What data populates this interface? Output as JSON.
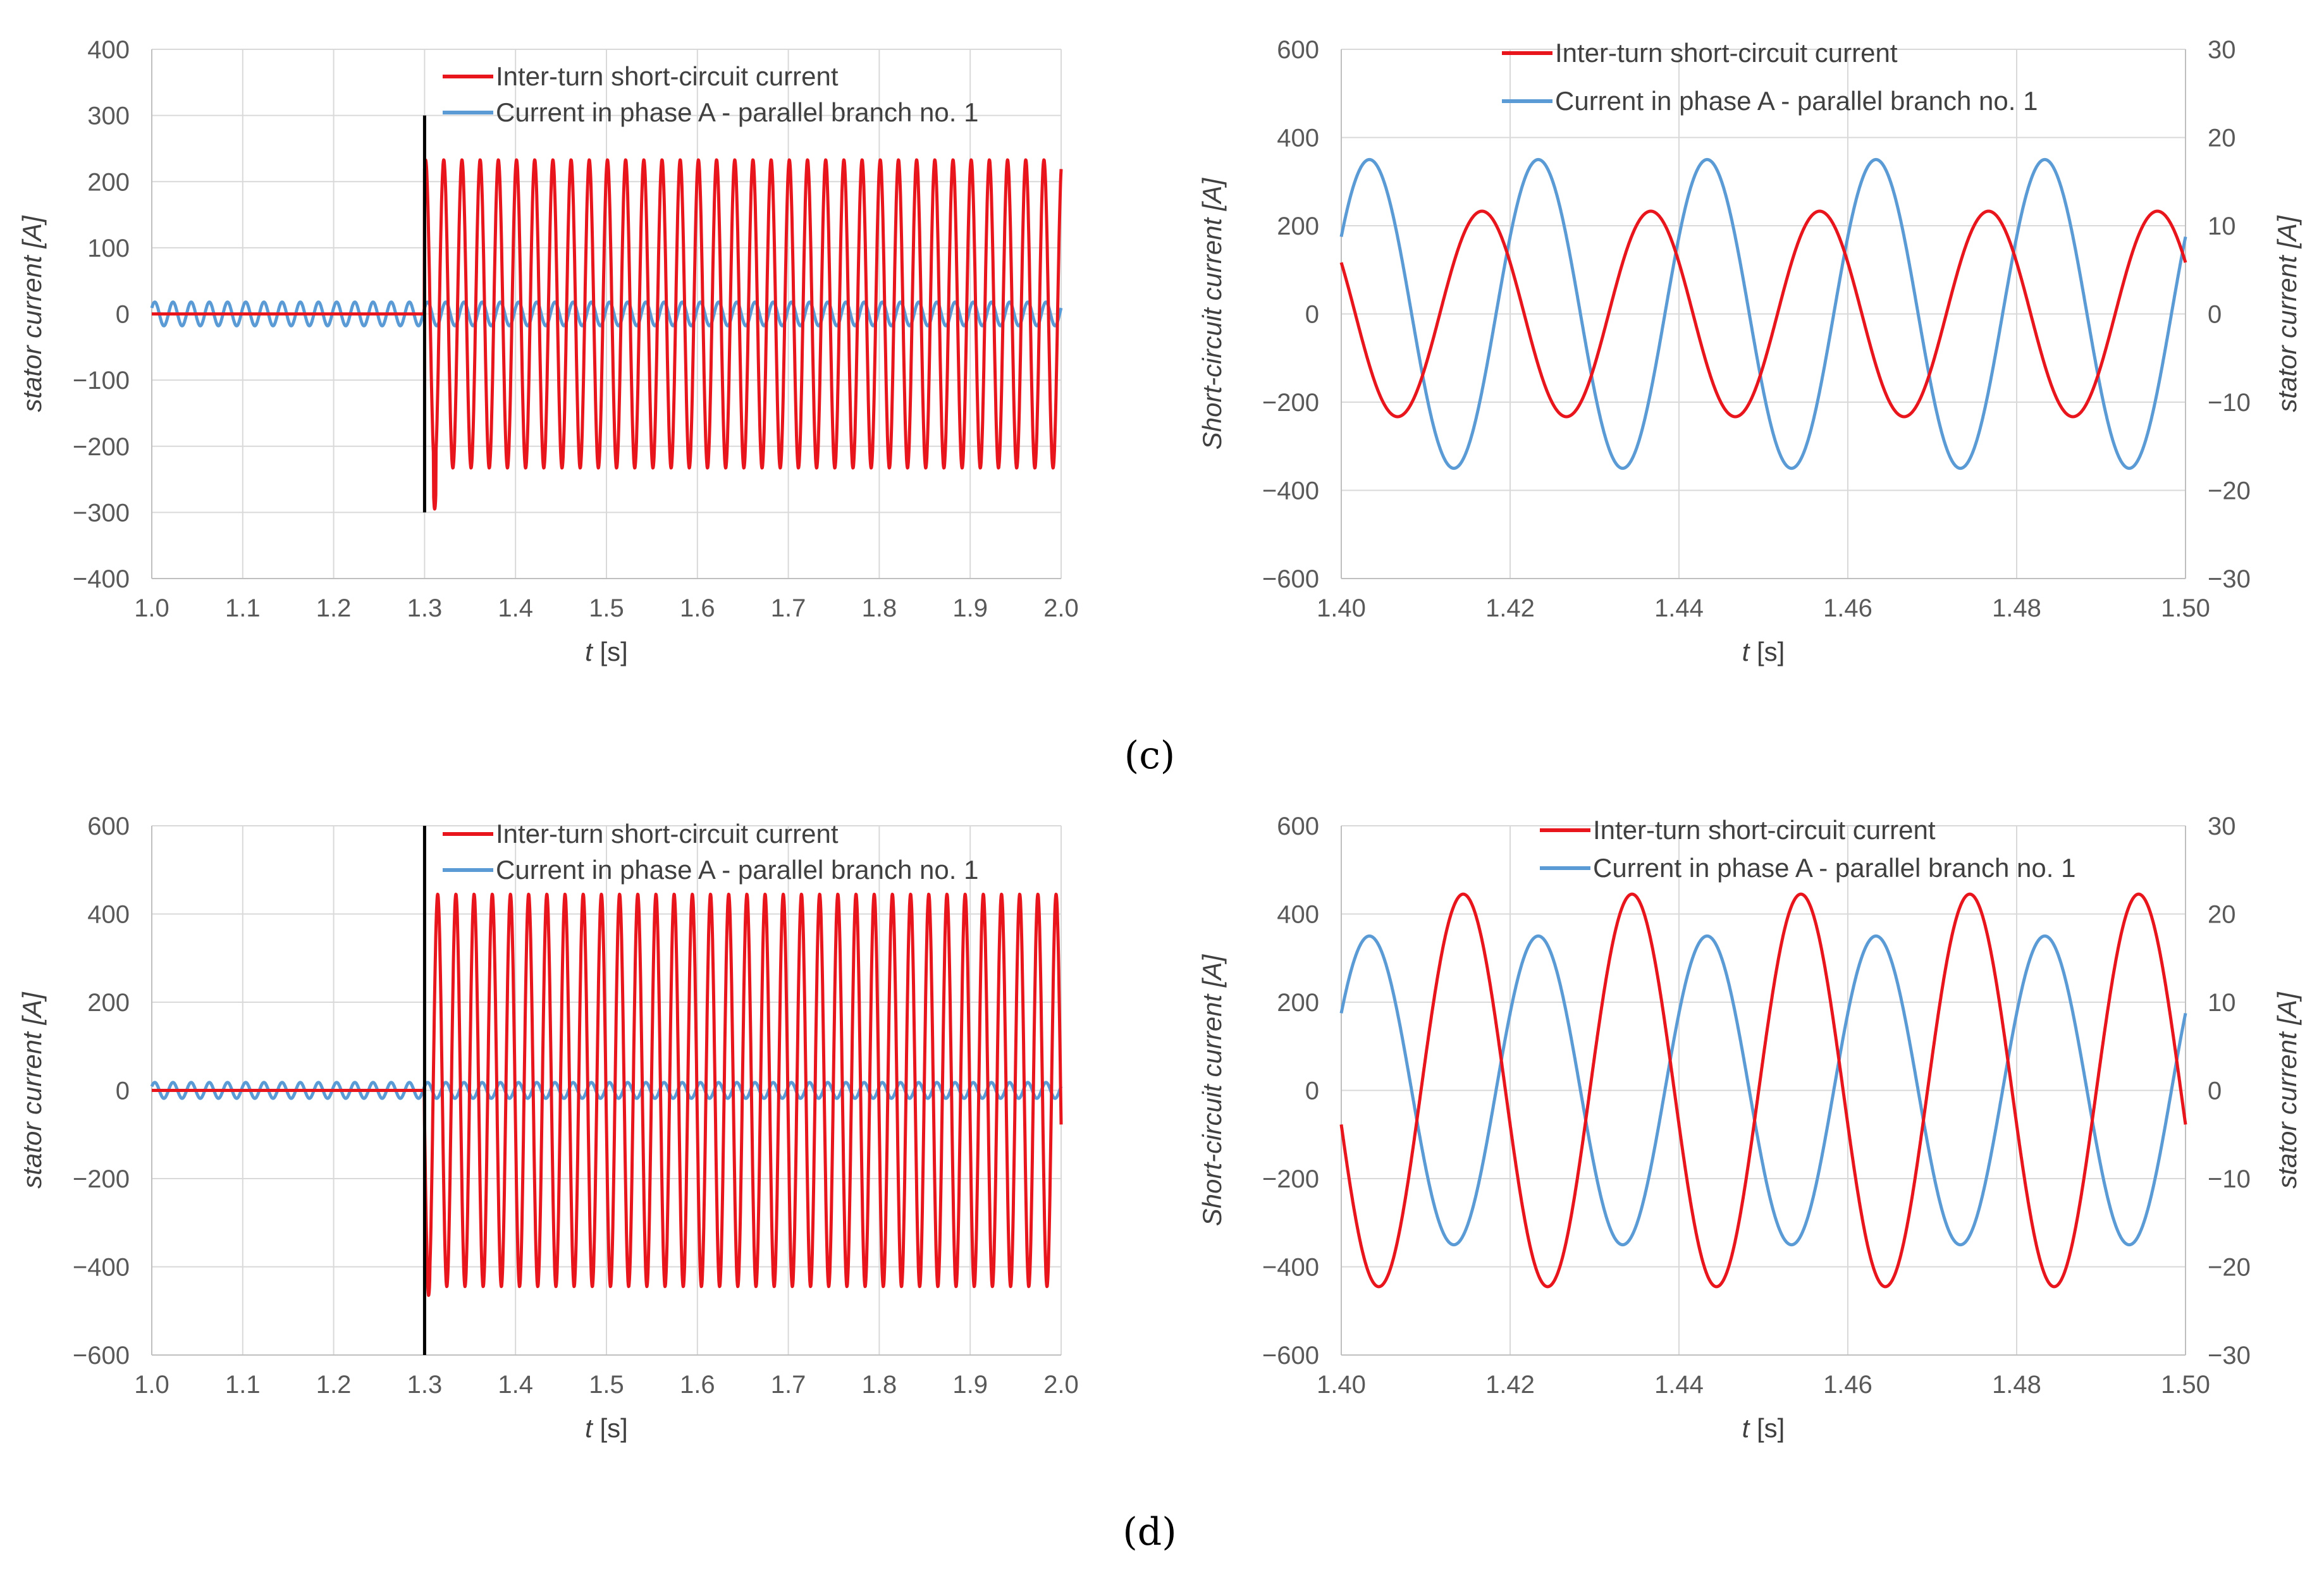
{
  "panel_labels": [
    "(c)",
    "(d)"
  ],
  "colors": {
    "short_circuit": "#e8161c",
    "phase_a": "#5b9bd5",
    "fault_line": "#000000",
    "grid": "#d9d9d9",
    "axis": "#bfbfbf"
  },
  "chart_data": [
    {
      "type": "line",
      "panel": "(c)",
      "position": "left",
      "x_tick_labels": [
        "1.0",
        "1.1",
        "1.2",
        "1.3",
        "1.4",
        "1.5",
        "1.6",
        "1.7",
        "1.8",
        "1.9",
        "2.0"
      ],
      "y_tick_labels": [
        "400",
        "300",
        "200",
        "100",
        "0",
        "−100",
        "−200",
        "−300",
        "−400"
      ],
      "xlim": [
        1.0,
        2.0
      ],
      "ylim": [
        -400,
        400
      ],
      "ylabel": "stator current [A]",
      "xlabel_var": "t",
      "xlabel_unit": " [s]",
      "grid": true,
      "fault_time": 1.3,
      "fault_line_range": [
        -300,
        300
      ],
      "legend": [
        "Inter-turn short-circuit current",
        "Current in phase A - parallel branch no. 1"
      ],
      "legend_placement": "top-center",
      "series": [
        {
          "name": "Inter-turn short-circuit current",
          "start": 1.3,
          "amplitude": 233,
          "frequency_hz": 50,
          "phase_deg": 70,
          "value_before_start": 0,
          "initial_min": -295
        },
        {
          "name": "Current in phase A - parallel branch no. 1",
          "start": 1.0,
          "amplitude": 18,
          "frequency_hz": 50,
          "phase_deg": 30
        }
      ]
    },
    {
      "type": "line",
      "panel": "(c)",
      "position": "right",
      "x_tick_labels": [
        "1.40",
        "1.42",
        "1.44",
        "1.46",
        "1.48",
        "1.50"
      ],
      "y_tick_labels": [
        "600",
        "400",
        "200",
        "0",
        "−200",
        "−400",
        "−600"
      ],
      "y2_tick_labels": [
        "30",
        "20",
        "10",
        "0",
        "−10",
        "−20",
        "−30"
      ],
      "xlim": [
        1.4,
        1.5
      ],
      "ylim": [
        -600,
        600
      ],
      "y2lim": [
        -30,
        30
      ],
      "ylabel": "Short-circuit current [A]",
      "y2label": "stator current [A]",
      "xlabel_var": "t",
      "xlabel_unit": " [s]",
      "grid": true,
      "legend": [
        "Inter-turn short-circuit current",
        "Current in phase A - parallel branch no. 1"
      ],
      "legend_placement": "top-center",
      "series": [
        {
          "name": "Inter-turn short-circuit current",
          "axis": "left",
          "amplitude": 233,
          "frequency_hz": 50,
          "phase_deg": 150
        },
        {
          "name": "Current in phase A - parallel branch no. 1",
          "axis": "right",
          "amplitude": 17.5,
          "frequency_hz": 50,
          "phase_deg": 30
        }
      ]
    },
    {
      "type": "line",
      "panel": "(d)",
      "position": "left",
      "x_tick_labels": [
        "1.0",
        "1.1",
        "1.2",
        "1.3",
        "1.4",
        "1.5",
        "1.6",
        "1.7",
        "1.8",
        "1.9",
        "2.0"
      ],
      "y_tick_labels": [
        "600",
        "400",
        "200",
        "0",
        "−200",
        "−400",
        "−600"
      ],
      "xlim": [
        1.0,
        2.0
      ],
      "ylim": [
        -600,
        600
      ],
      "ylabel": "stator current [A]",
      "xlabel_var": "t",
      "xlabel_unit": " [s]",
      "grid": true,
      "fault_time": 1.3,
      "fault_line_range": [
        -600,
        600
      ],
      "legend": [
        "Inter-turn short-circuit current",
        "Current in phase A - parallel branch no. 1"
      ],
      "legend_placement": "top-center",
      "series": [
        {
          "name": "Inter-turn short-circuit current",
          "start": 1.3,
          "amplitude": 445,
          "frequency_hz": 50,
          "phase_deg": 190,
          "value_before_start": 0,
          "initial_min": -465
        },
        {
          "name": "Current in phase A - parallel branch no. 1",
          "start": 1.0,
          "amplitude": 18,
          "frequency_hz": 50,
          "phase_deg": 30
        }
      ]
    },
    {
      "type": "line",
      "panel": "(d)",
      "position": "right",
      "x_tick_labels": [
        "1.40",
        "1.42",
        "1.44",
        "1.46",
        "1.48",
        "1.50"
      ],
      "y_tick_labels": [
        "600",
        "400",
        "200",
        "0",
        "−200",
        "−400",
        "−600"
      ],
      "y2_tick_labels": [
        "30",
        "20",
        "10",
        "0",
        "−10",
        "−20",
        "−30"
      ],
      "xlim": [
        1.4,
        1.5
      ],
      "ylim": [
        -600,
        600
      ],
      "y2lim": [
        -30,
        30
      ],
      "ylabel": "Short-circuit current [A]",
      "y2label": "stator current [A]",
      "xlabel_var": "t",
      "xlabel_unit": " [s]",
      "grid": true,
      "legend": [
        "Inter-turn short-circuit current",
        "Current in phase A - parallel branch no. 1"
      ],
      "legend_placement": "top-center",
      "series": [
        {
          "name": "Inter-turn short-circuit current",
          "axis": "left",
          "amplitude": 445,
          "frequency_hz": 50,
          "phase_deg": 190
        },
        {
          "name": "Current in phase A - parallel branch no. 1",
          "axis": "right",
          "amplitude": 17.5,
          "frequency_hz": 50,
          "phase_deg": 30
        }
      ]
    }
  ]
}
